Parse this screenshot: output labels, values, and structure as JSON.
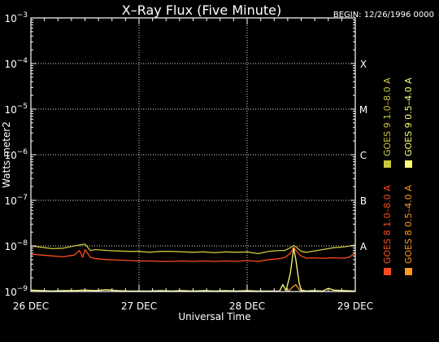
{
  "chart_data": {
    "type": "line",
    "title": "X–Ray Flux (Five Minute)",
    "begin_label": "BEGIN: 12/26/1996 0000",
    "xlabel": "Universal Time",
    "ylabel": "Watts meter2",
    "x_ticks": [
      "26 DEC",
      "27 DEC",
      "28 DEC",
      "29 DEC"
    ],
    "x_range_days": [
      0,
      3
    ],
    "y_scale": "log",
    "y_exponent_range": [
      -9,
      -3
    ],
    "y_tick_exponents": [
      -9,
      -8,
      -7,
      -6,
      -5,
      -4,
      -3
    ],
    "y_tick_base": "10",
    "flare_classes": [
      {
        "label": "A",
        "exponent": -8
      },
      {
        "label": "B",
        "exponent": -7
      },
      {
        "label": "C",
        "exponent": -6
      },
      {
        "label": "M",
        "exponent": -5
      },
      {
        "label": "X",
        "exponent": -4
      }
    ],
    "grid": "dotted",
    "legend_position": "right, vertical",
    "legend": [
      {
        "label": "GOES 8 1.0–8.0 A",
        "color": "#ff4b1f"
      },
      {
        "label": "GOES 9 1.0–8.0 A",
        "color": "#c8c83c"
      },
      {
        "label": "GOES 8 0.5–4.0 A",
        "color": "#ff9a1e"
      },
      {
        "label": "GOES 9 0.5–4.0 A",
        "color": "#ffff7a"
      }
    ],
    "series": [
      {
        "name": "GOES 9 1.0–8.0 A",
        "color": "#c8c83c",
        "x_days": [
          0,
          0.1,
          0.2,
          0.3,
          0.4,
          0.5,
          0.55,
          0.6,
          0.7,
          0.8,
          0.9,
          1.0,
          1.1,
          1.2,
          1.3,
          1.4,
          1.5,
          1.6,
          1.7,
          1.8,
          1.9,
          2.0,
          2.1,
          2.2,
          2.3,
          2.35,
          2.4,
          2.43,
          2.45,
          2.48,
          2.5,
          2.55,
          2.6,
          2.7,
          2.8,
          2.9,
          3.0
        ],
        "log10_flux": [
          -8.0,
          -8.03,
          -8.06,
          -8.05,
          -8.0,
          -7.96,
          -8.1,
          -8.08,
          -8.1,
          -8.11,
          -8.12,
          -8.12,
          -8.14,
          -8.12,
          -8.12,
          -8.13,
          -8.14,
          -8.13,
          -8.15,
          -8.13,
          -8.14,
          -8.13,
          -8.17,
          -8.12,
          -8.1,
          -8.1,
          -8.04,
          -7.99,
          -8.02,
          -8.08,
          -8.12,
          -8.14,
          -8.12,
          -8.08,
          -8.04,
          -8.02,
          -7.98
        ]
      },
      {
        "name": "GOES 8 1.0–8.0 A",
        "color": "#ff4b1f",
        "x_days": [
          0,
          0.1,
          0.2,
          0.3,
          0.4,
          0.45,
          0.48,
          0.5,
          0.55,
          0.6,
          0.7,
          0.8,
          0.9,
          1.0,
          1.1,
          1.2,
          1.3,
          1.4,
          1.5,
          1.6,
          1.7,
          1.8,
          1.9,
          2.0,
          2.1,
          2.2,
          2.3,
          2.35,
          2.4,
          2.43,
          2.45,
          2.48,
          2.5,
          2.55,
          2.6,
          2.7,
          2.8,
          2.9,
          2.95,
          3.0
        ],
        "log10_flux": [
          -8.18,
          -8.2,
          -8.22,
          -8.24,
          -8.2,
          -8.1,
          -8.25,
          -8.08,
          -8.25,
          -8.28,
          -8.3,
          -8.31,
          -8.32,
          -8.33,
          -8.33,
          -8.34,
          -8.34,
          -8.33,
          -8.34,
          -8.33,
          -8.34,
          -8.33,
          -8.34,
          -8.32,
          -8.34,
          -8.3,
          -8.28,
          -8.25,
          -8.16,
          -8.03,
          -8.1,
          -8.18,
          -8.22,
          -8.27,
          -8.26,
          -8.27,
          -8.26,
          -8.27,
          -8.24,
          -8.15
        ]
      },
      {
        "name": "GOES 9 0.5–4.0 A",
        "color": "#ffff7a",
        "x_days": [
          0,
          0.1,
          0.2,
          0.3,
          0.4,
          0.5,
          0.6,
          0.7,
          0.8,
          0.9,
          1.0,
          1.1,
          1.2,
          1.3,
          1.4,
          1.5,
          1.6,
          1.7,
          1.8,
          1.9,
          2.0,
          2.1,
          2.2,
          2.3,
          2.33,
          2.36,
          2.4,
          2.43,
          2.45,
          2.48,
          2.5,
          2.55,
          2.6,
          2.7,
          2.75,
          2.8,
          2.9,
          3.0
        ],
        "log10_flux": [
          -8.97,
          -8.98,
          -8.99,
          -8.98,
          -8.98,
          -8.97,
          -8.98,
          -8.96,
          -8.98,
          -8.99,
          -8.99,
          -8.99,
          -8.98,
          -8.99,
          -8.98,
          -8.99,
          -8.98,
          -8.99,
          -8.98,
          -8.99,
          -8.98,
          -8.99,
          -8.99,
          -8.99,
          -8.85,
          -8.98,
          -8.6,
          -8.05,
          -8.3,
          -8.8,
          -8.97,
          -8.99,
          -8.98,
          -8.99,
          -8.93,
          -8.97,
          -8.98,
          -8.99
        ]
      },
      {
        "name": "GOES 8 0.5–4.0 A",
        "color": "#ff9a1e",
        "x_days": [
          2.38,
          2.42,
          2.45,
          2.48,
          2.5,
          2.53
        ],
        "log10_flux": [
          -9.0,
          -8.9,
          -8.85,
          -8.95,
          -9.0,
          -9.0
        ]
      }
    ]
  }
}
